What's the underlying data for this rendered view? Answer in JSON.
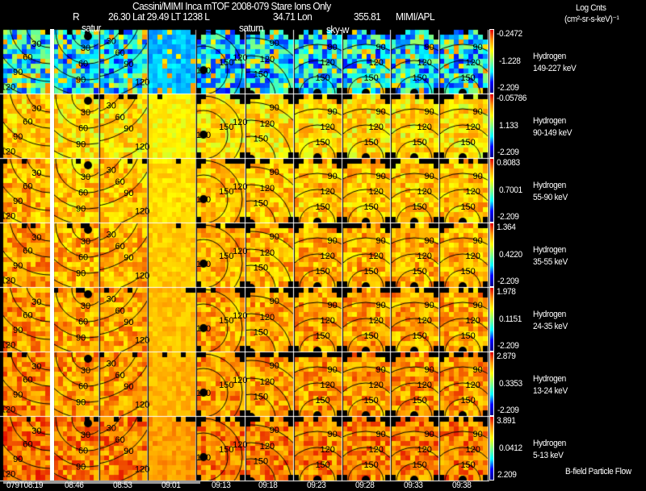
{
  "header": {
    "title": "Cassini/MIMI Inca mTOF  2008-079   Stare   Ions Only",
    "r_label": "R",
    "position_text": "26.30 Lat 29.49 LT 1238 L",
    "lon_text": "34.71 Lon",
    "lon_value": "355.81",
    "credit": "MIMI/APL"
  },
  "units": {
    "line1": "Log Cnts",
    "line2": "(cm²-sr-s-keV)⁻¹"
  },
  "overlay_labels": [
    "satur",
    "saturn",
    "sky-w"
  ],
  "rows": [
    {
      "species": "Hydrogen",
      "energy": "149-227 keV",
      "max": "-0.2472",
      "mid": "-1.228",
      "min": "-2.209",
      "level": 0.33
    },
    {
      "species": "Hydrogen",
      "energy": "90-149 keV",
      "max": "-0.05786",
      "mid": "1.133",
      "min": "-2.209",
      "level": 0.68
    },
    {
      "species": "Hydrogen",
      "energy": "55-90 keV",
      "max": "0.8083",
      "mid": "0.7001",
      "min": "-2.209",
      "level": 0.72
    },
    {
      "species": "Hydrogen",
      "energy": "35-55 keV",
      "max": "1.364",
      "mid": "0.4220",
      "min": "-2.209",
      "level": 0.75
    },
    {
      "species": "Hydrogen",
      "energy": "24-35 keV",
      "max": "1.978",
      "mid": "0.1151",
      "min": "-2.209",
      "level": 0.77
    },
    {
      "species": "Hydrogen",
      "energy": "13-24 keV",
      "max": "2.879",
      "mid": "0.3353",
      "min": "-2.209",
      "level": 0.79
    },
    {
      "species": "Hydrogen",
      "energy": "5-13 keV",
      "max": "3.891",
      "mid": "0.0412",
      "min": "2.209",
      "level": 0.83
    }
  ],
  "times": [
    "079T08:19",
    "08:46",
    "08:53",
    "09:01",
    "09:13",
    "09:18",
    "09:23",
    "09:28",
    "09:33",
    "09:38"
  ],
  "legend_note": "B-field Particle Flow",
  "contour_levels_a": [
    "30",
    "60",
    "90",
    "120"
  ],
  "contour_levels_b": [
    "180",
    "150",
    "120",
    "90"
  ],
  "colormap": [
    "#00008c",
    "#0000ff",
    "#00ffff",
    "#80ff80",
    "#ffff00",
    "#ff9900",
    "#e00000"
  ]
}
